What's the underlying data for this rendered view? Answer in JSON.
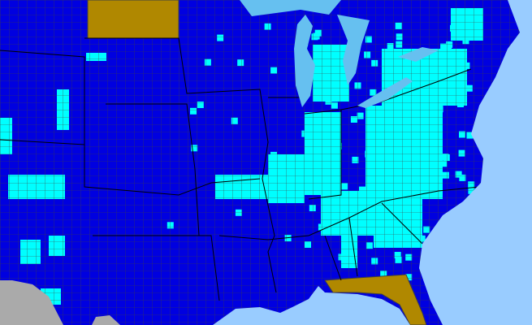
{
  "map": {
    "colors": {
      "ocean": "#99ccff",
      "lakes": "#66c0f0",
      "category_low": "#0000e0",
      "category_high": "#00ffff",
      "category_other": "#b08800",
      "no_data": "#aaaaaa",
      "county_border": "#404040",
      "state_border": "#000000"
    }
  }
}
